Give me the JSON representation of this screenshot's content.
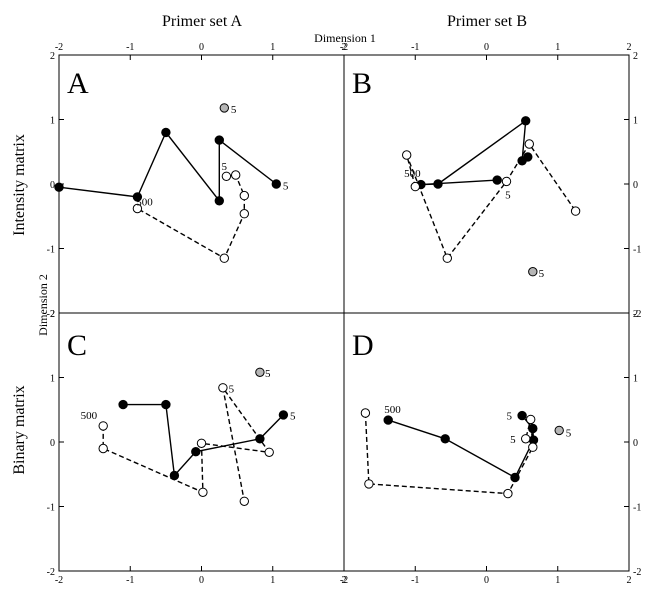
{
  "figure": {
    "col_titles": [
      "Primer set A",
      "Primer set B"
    ],
    "row_titles": [
      "Intensity matrix",
      "Binary matrix"
    ],
    "dim1_label": "Dimension 1",
    "dim2_label": "Dimension 2",
    "x_ticks": [
      -2,
      -1,
      0,
      1,
      2
    ],
    "y_ticks": [
      -2,
      -1,
      0,
      1,
      2
    ],
    "colors": {
      "filled": "#000000",
      "open": "#ffffff",
      "gray": "#b5b5b5",
      "line": "#000000"
    }
  },
  "chart_data": [
    {
      "type": "scatter",
      "panel": "A",
      "xlim": [
        -2,
        2
      ],
      "ylim": [
        -2,
        2
      ],
      "series": [
        {
          "marker": "filled",
          "line": "solid",
          "points": [
            [
              1.05,
              0.0
            ],
            [
              0.25,
              0.68
            ],
            [
              0.25,
              -0.26
            ],
            [
              -0.5,
              0.8
            ],
            [
              -0.9,
              -0.2
            ],
            [
              -2.0,
              -0.05
            ]
          ]
        },
        {
          "marker": "open",
          "line": "dashed",
          "points": [
            [
              0.35,
              0.12
            ],
            [
              0.48,
              0.14
            ],
            [
              0.6,
              -0.18
            ],
            [
              0.6,
              -0.46
            ],
            [
              0.32,
              -1.15
            ],
            [
              -0.9,
              -0.38
            ]
          ]
        },
        {
          "marker": "gray",
          "line": "none",
          "points": [
            [
              0.32,
              1.18
            ]
          ]
        }
      ],
      "annotations": [
        {
          "text": "500",
          "x": -0.8,
          "y": -0.27
        },
        {
          "text": "5",
          "x": 0.32,
          "y": 0.28
        },
        {
          "text": "5",
          "x": 1.18,
          "y": -0.02
        },
        {
          "text": "5",
          "x": 0.45,
          "y": 1.16
        }
      ]
    },
    {
      "type": "scatter",
      "panel": "B",
      "xlim": [
        -2,
        2
      ],
      "ylim": [
        -2,
        2
      ],
      "series": [
        {
          "marker": "filled",
          "line": "solid",
          "points": [
            [
              0.58,
              0.42
            ],
            [
              0.5,
              0.36
            ],
            [
              0.55,
              0.98
            ],
            [
              -0.68,
              0.0
            ],
            [
              -0.92,
              -0.01
            ],
            [
              0.15,
              0.06
            ]
          ]
        },
        {
          "marker": "open",
          "line": "dashed",
          "points": [
            [
              -1.0,
              -0.04
            ],
            [
              -1.12,
              0.45
            ],
            [
              -0.55,
              -1.15
            ],
            [
              0.28,
              0.04
            ],
            [
              0.6,
              0.62
            ],
            [
              1.25,
              -0.42
            ]
          ]
        },
        {
          "marker": "gray",
          "line": "none",
          "points": [
            [
              0.65,
              -1.36
            ]
          ]
        }
      ],
      "annotations": [
        {
          "text": "500",
          "x": -1.04,
          "y": 0.17
        },
        {
          "text": "5",
          "x": 0.3,
          "y": -0.16
        },
        {
          "text": "5",
          "x": 0.77,
          "y": -1.38
        }
      ]
    },
    {
      "type": "scatter",
      "panel": "C",
      "xlim": [
        -2,
        2
      ],
      "ylim": [
        -2,
        2
      ],
      "series": [
        {
          "marker": "filled",
          "line": "solid",
          "points": [
            [
              -1.1,
              0.58
            ],
            [
              -0.5,
              0.58
            ],
            [
              -0.38,
              -0.52
            ],
            [
              -0.08,
              -0.15
            ],
            [
              0.82,
              0.05
            ],
            [
              1.15,
              0.42
            ]
          ]
        },
        {
          "marker": "open",
          "line": "dashed",
          "points": [
            [
              -1.38,
              0.25
            ],
            [
              -1.38,
              -0.1
            ],
            [
              0.02,
              -0.78
            ],
            [
              0.0,
              -0.02
            ],
            [
              0.95,
              -0.16
            ],
            [
              0.3,
              0.84
            ],
            [
              0.6,
              -0.92
            ]
          ]
        },
        {
          "marker": "gray",
          "line": "none",
          "points": [
            [
              0.82,
              1.08
            ]
          ]
        }
      ],
      "annotations": [
        {
          "text": "500",
          "x": -1.58,
          "y": 0.42
        },
        {
          "text": "5",
          "x": 0.42,
          "y": 0.83
        },
        {
          "text": "5",
          "x": 1.28,
          "y": 0.41
        },
        {
          "text": "5",
          "x": 0.93,
          "y": 1.07
        }
      ]
    },
    {
      "type": "scatter",
      "panel": "D",
      "xlim": [
        -2,
        2
      ],
      "ylim": [
        -2,
        2
      ],
      "series": [
        {
          "marker": "filled",
          "line": "solid",
          "points": [
            [
              -1.38,
              0.34
            ],
            [
              -0.58,
              0.05
            ],
            [
              0.4,
              -0.55
            ],
            [
              0.66,
              0.03
            ],
            [
              0.65,
              0.21
            ],
            [
              0.5,
              0.41
            ]
          ]
        },
        {
          "marker": "open",
          "line": "dashed",
          "points": [
            [
              -1.7,
              0.45
            ],
            [
              -1.65,
              -0.65
            ],
            [
              0.3,
              -0.8
            ],
            [
              0.65,
              -0.08
            ],
            [
              0.62,
              0.35
            ],
            [
              0.55,
              0.05
            ]
          ]
        },
        {
          "marker": "gray",
          "line": "none",
          "points": [
            [
              1.02,
              0.18
            ]
          ]
        }
      ],
      "annotations": [
        {
          "text": "500",
          "x": -1.32,
          "y": 0.51
        },
        {
          "text": "5",
          "x": 0.32,
          "y": 0.41
        },
        {
          "text": "5",
          "x": 0.37,
          "y": 0.05
        },
        {
          "text": "5",
          "x": 1.15,
          "y": 0.15
        }
      ]
    }
  ]
}
